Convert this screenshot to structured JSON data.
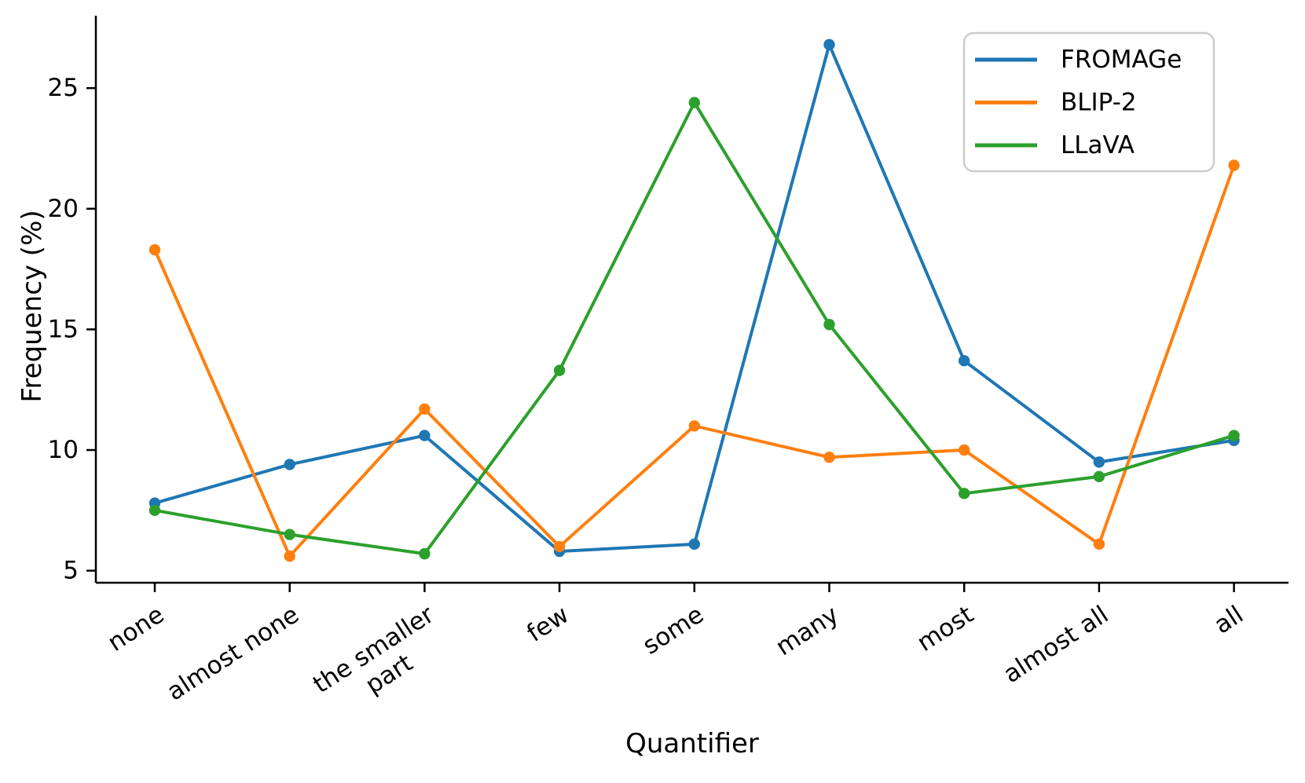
{
  "chart_data": {
    "type": "line",
    "title": "",
    "xlabel": "Quantifier",
    "ylabel": "Frequency (%)",
    "categories": [
      "none",
      "almost none",
      "the smaller part",
      "few",
      "some",
      "many",
      "most",
      "almost all",
      "all"
    ],
    "series": [
      {
        "name": "FROMAGe",
        "color": "#1f77b4",
        "values": [
          7.8,
          9.4,
          10.6,
          5.8,
          6.1,
          26.8,
          13.7,
          9.5,
          10.4
        ]
      },
      {
        "name": "BLIP-2",
        "color": "#ff7f0e",
        "values": [
          18.3,
          5.6,
          11.7,
          6.0,
          11.0,
          9.7,
          10.0,
          6.1,
          21.8
        ]
      },
      {
        "name": "LLaVA",
        "color": "#2ca02c",
        "values": [
          7.5,
          6.5,
          5.7,
          13.3,
          24.4,
          15.2,
          8.2,
          8.9,
          10.6
        ]
      }
    ],
    "yticks": [
      5,
      10,
      15,
      20,
      25
    ],
    "ylim": [
      4.5,
      28.0
    ],
    "grid": false,
    "legend_position": "upper right",
    "marker": "circle",
    "axis_color": "#000000",
    "background": "#ffffff"
  }
}
